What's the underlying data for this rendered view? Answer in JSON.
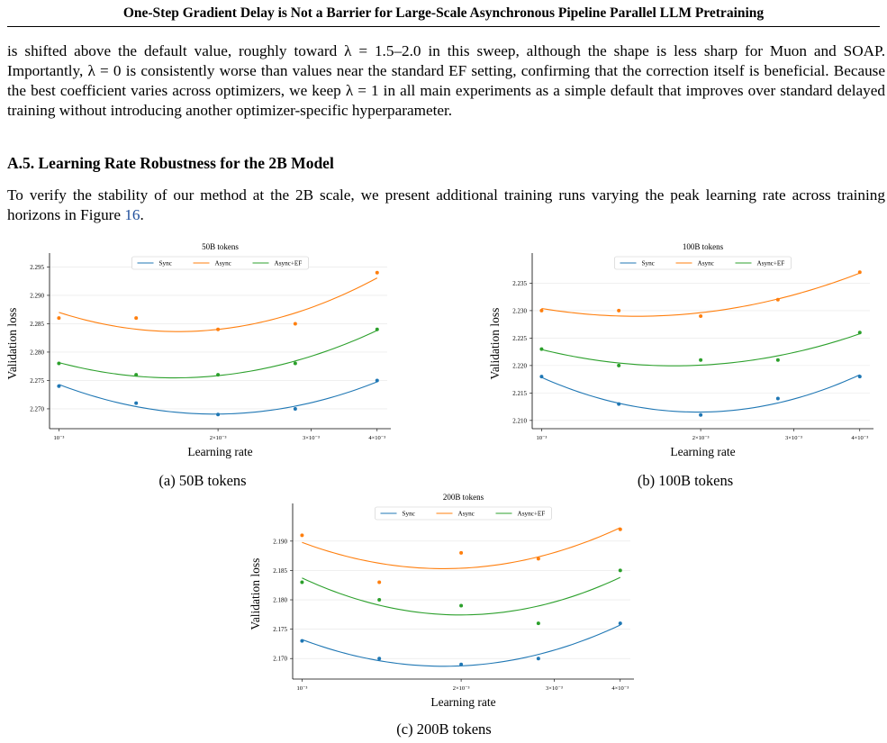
{
  "header": {
    "title": "One-Step Gradient Delay is Not a Barrier for Large-Scale Asynchronous Pipeline Parallel LLM Pretraining"
  },
  "paragraph1": "is shifted above the default value, roughly toward λ = 1.5–2.0 in this sweep, although the shape is less sharp for Muon and SOAP. Importantly, λ = 0 is consistently worse than values near the standard EF setting, confirming that the correction itself is beneficial. Because the best coefficient varies across optimizers, we keep λ = 1 in all main experiments as a simple default that improves over standard delayed training without introducing another optimizer-specific hyperparameter.",
  "section": {
    "title": "A.5. Learning Rate Robustness for the 2B Model"
  },
  "paragraph2": {
    "text": "To verify the stability of our method at the 2B scale, we present additional training runs varying the peak learning rate across training horizons in Figure ",
    "ref": "16",
    "end": "."
  },
  "colors": {
    "sync": "#1f77b4",
    "async": "#ff7f0e",
    "async_ef": "#2ca02c"
  },
  "chart_data": [
    {
      "type": "scatter",
      "title": "50B tokens",
      "caption": "(a) 50B tokens",
      "xlabel": "Learning rate",
      "ylabel": "Validation loss",
      "xscale": "log",
      "x": [
        0.001,
        0.0014,
        0.002,
        0.0028,
        0.004
      ],
      "xticks": [
        0.001,
        0.002,
        0.003,
        0.004
      ],
      "xtick_labels": [
        "10⁻³",
        "2×10⁻³",
        "3×10⁻³",
        "4×10⁻³"
      ],
      "ylim": [
        2.2665,
        2.2965
      ],
      "yticks": [
        2.27,
        2.275,
        2.28,
        2.285,
        2.29,
        2.295
      ],
      "ytick_labels": [
        "2.270",
        "2.275",
        "2.280",
        "2.285",
        "2.290",
        "2.295"
      ],
      "legend": "top-center",
      "grid": true,
      "series": [
        {
          "name": "Sync",
          "values": [
            2.274,
            2.271,
            2.269,
            2.27,
            2.275
          ]
        },
        {
          "name": "Async",
          "values": [
            2.286,
            2.286,
            2.284,
            2.285,
            2.294
          ]
        },
        {
          "name": "Async+EF",
          "values": [
            2.278,
            2.276,
            2.276,
            2.278,
            2.284
          ]
        }
      ]
    },
    {
      "type": "scatter",
      "title": "100B tokens",
      "caption": "(b) 100B tokens",
      "xlabel": "Learning rate",
      "ylabel": "Validation loss",
      "xscale": "log",
      "x": [
        0.001,
        0.0014,
        0.002,
        0.0028,
        0.004
      ],
      "xticks": [
        0.001,
        0.002,
        0.003,
        0.004
      ],
      "xtick_labels": [
        "10⁻³",
        "2×10⁻³",
        "3×10⁻³",
        "4×10⁻³"
      ],
      "ylim": [
        2.2085,
        2.2395
      ],
      "yticks": [
        2.21,
        2.215,
        2.22,
        2.225,
        2.23,
        2.235
      ],
      "ytick_labels": [
        "2.210",
        "2.215",
        "2.220",
        "2.225",
        "2.230",
        "2.235"
      ],
      "legend": "top-center",
      "grid": true,
      "series": [
        {
          "name": "Sync",
          "values": [
            2.218,
            2.213,
            2.211,
            2.214,
            2.218
          ]
        },
        {
          "name": "Async",
          "values": [
            2.23,
            2.23,
            2.229,
            2.232,
            2.237
          ]
        },
        {
          "name": "Async+EF",
          "values": [
            2.223,
            2.22,
            2.221,
            2.221,
            2.226
          ]
        }
      ]
    },
    {
      "type": "scatter",
      "title": "200B tokens",
      "caption": "(c) 200B tokens",
      "xlabel": "Learning rate",
      "ylabel": "Validation loss",
      "xscale": "log",
      "x": [
        0.001,
        0.0014,
        0.002,
        0.0028,
        0.004
      ],
      "xticks": [
        0.001,
        0.002,
        0.003,
        0.004
      ],
      "xtick_labels": [
        "10⁻³",
        "2×10⁻³",
        "3×10⁻³",
        "4×10⁻³"
      ],
      "ylim": [
        2.1665,
        2.1955
      ],
      "yticks": [
        2.17,
        2.175,
        2.18,
        2.185,
        2.19
      ],
      "ytick_labels": [
        "2.170",
        "2.175",
        "2.180",
        "2.185",
        "2.190"
      ],
      "legend": "top-center",
      "grid": true,
      "series": [
        {
          "name": "Sync",
          "values": [
            2.173,
            2.17,
            2.169,
            2.17,
            2.176
          ]
        },
        {
          "name": "Async",
          "values": [
            2.191,
            2.183,
            2.188,
            2.187,
            2.192
          ]
        },
        {
          "name": "Async+EF",
          "values": [
            2.183,
            2.18,
            2.179,
            2.176,
            2.185
          ]
        }
      ]
    }
  ]
}
